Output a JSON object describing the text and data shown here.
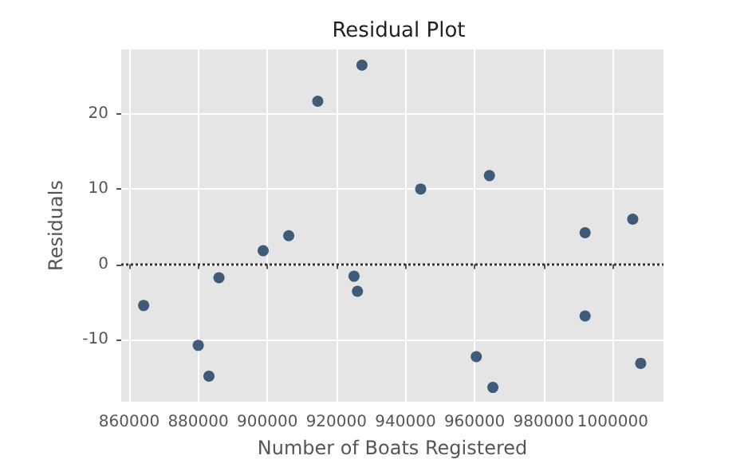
{
  "chart_data": {
    "type": "scatter",
    "title": "Residual Plot",
    "xlabel": "Number of Boats Registered",
    "ylabel": "Residuals",
    "x": [
      864200,
      880000,
      883100,
      886000,
      898800,
      906200,
      925100,
      926100,
      914600,
      927400,
      944400,
      964300,
      992000,
      1005800,
      992000,
      960500,
      965300,
      1008100
    ],
    "values": [
      -5.5,
      -10.8,
      -14.9,
      -1.8,
      1.8,
      3.8,
      -1.6,
      -3.6,
      21.7,
      26.5,
      10,
      11.8,
      4.2,
      6.0,
      -6.9,
      -12.3,
      -16.4,
      -13.2
    ],
    "color": "#17375e",
    "marker": "circle",
    "xlim": [
      857700,
      1014700
    ],
    "xticks": [
      860000,
      880000,
      900000,
      920000,
      940000,
      960000,
      980000,
      1000000
    ],
    "ylim": [
      -18.3,
      28.6
    ],
    "yticks": [
      -10,
      0,
      10,
      20
    ],
    "ref_lines": [
      {
        "axis": "y",
        "value": 0,
        "color": "#333333",
        "line_style": "dotted"
      }
    ],
    "grid": true
  }
}
